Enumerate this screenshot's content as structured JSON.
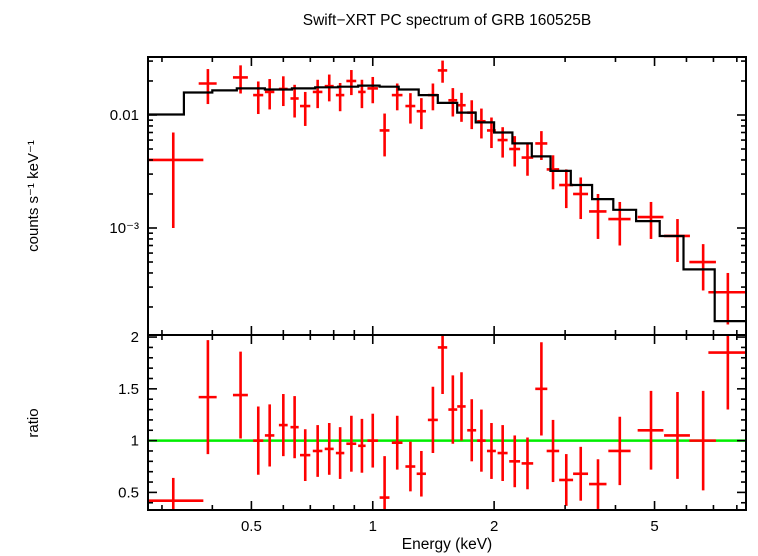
{
  "window": {
    "background": "#ffffff"
  },
  "chart_data": {
    "type": "scatter",
    "title": "Swift−XRT PC spectrum of GRB 160525B",
    "xlabel": "Energy (keV)",
    "x_scale": "log",
    "x_range": [
      0.277,
      8.43
    ],
    "x_major_ticks": [
      0.5,
      1,
      2,
      5
    ],
    "x_major_tick_labels": [
      "0.5",
      "1",
      "2",
      "5"
    ],
    "x_minor_ticks": [
      0.3,
      0.4,
      0.6,
      0.7,
      0.8,
      0.9,
      3,
      4,
      6,
      7,
      8
    ],
    "grid": "off",
    "legend": "none",
    "colors": {
      "data": "#ff0000",
      "model": "#000000",
      "reference_line": "#00ee00",
      "axis": "#000000"
    },
    "top_panel": {
      "ylabel": "counts s⁻¹ keV⁻¹",
      "y_scale": "log",
      "y_range": [
        0.000113,
        0.0326
      ],
      "y_major_ticks": [
        0.01,
        0.001
      ],
      "y_major_tick_labels": [
        "0.01",
        "10⁻³"
      ],
      "model_bins": [
        [
          0.277,
          0.34,
          0.0101
        ],
        [
          0.34,
          0.4,
          0.0158
        ],
        [
          0.4,
          0.46,
          0.0165
        ],
        [
          0.46,
          0.54,
          0.0172
        ],
        [
          0.54,
          0.63,
          0.0168
        ],
        [
          0.63,
          0.72,
          0.0172
        ],
        [
          0.72,
          0.82,
          0.0176
        ],
        [
          0.82,
          0.92,
          0.0178
        ],
        [
          0.92,
          1.04,
          0.0182
        ],
        [
          1.04,
          1.16,
          0.0178
        ],
        [
          1.16,
          1.3,
          0.0168
        ],
        [
          1.3,
          1.45,
          0.015
        ],
        [
          1.45,
          1.62,
          0.0128
        ],
        [
          1.62,
          1.8,
          0.0105
        ],
        [
          1.8,
          2.0,
          0.0086
        ],
        [
          2.0,
          2.22,
          0.007
        ],
        [
          2.22,
          2.48,
          0.0056
        ],
        [
          2.48,
          2.76,
          0.0043
        ],
        [
          2.76,
          3.1,
          0.0032
        ],
        [
          3.1,
          3.5,
          0.0024
        ],
        [
          3.5,
          3.95,
          0.0018
        ],
        [
          3.95,
          4.5,
          0.00145
        ],
        [
          4.5,
          5.15,
          0.00115
        ],
        [
          5.15,
          5.9,
          0.00085
        ],
        [
          5.9,
          7.05,
          0.00043
        ],
        [
          7.05,
          8.43,
          0.00015
        ]
      ]
    },
    "bottom_panel": {
      "ylabel": "ratio",
      "y_scale": "linear",
      "y_range": [
        0.33,
        2.02
      ],
      "y_major_ticks": [
        0.5,
        1,
        1.5,
        2
      ],
      "y_major_tick_labels": [
        "0.5",
        "1",
        "1.5",
        "2"
      ],
      "y_minor_tick_step": 0.1,
      "reference_line_value": 1
    },
    "points_format": [
      "energy_keV",
      "energy_err_minus",
      "energy_err_plus",
      "counts_s_keV",
      "counts_err",
      "ratio",
      "ratio_err"
    ],
    "points": [
      [
        0.32,
        0.045,
        0.06,
        0.004,
        0.003,
        0.42,
        0.22
      ],
      [
        0.39,
        0.02,
        0.02,
        0.019,
        0.0065,
        1.42,
        0.55
      ],
      [
        0.47,
        0.02,
        0.02,
        0.0215,
        0.006,
        1.44,
        0.42
      ],
      [
        0.52,
        0.015,
        0.015,
        0.015,
        0.0048,
        1.0,
        0.33
      ],
      [
        0.555,
        0.015,
        0.015,
        0.016,
        0.0048,
        1.05,
        0.3
      ],
      [
        0.6,
        0.015,
        0.015,
        0.017,
        0.005,
        1.15,
        0.3
      ],
      [
        0.64,
        0.015,
        0.015,
        0.014,
        0.0045,
        1.13,
        0.3
      ],
      [
        0.68,
        0.02,
        0.02,
        0.012,
        0.004,
        0.86,
        0.25
      ],
      [
        0.73,
        0.02,
        0.02,
        0.016,
        0.0045,
        0.9,
        0.25
      ],
      [
        0.78,
        0.02,
        0.02,
        0.018,
        0.0048,
        0.92,
        0.25
      ],
      [
        0.83,
        0.02,
        0.02,
        0.015,
        0.0042,
        0.88,
        0.25
      ],
      [
        0.885,
        0.025,
        0.025,
        0.02,
        0.005,
        0.97,
        0.27
      ],
      [
        0.94,
        0.02,
        0.02,
        0.016,
        0.0045,
        0.95,
        0.26
      ],
      [
        1.0,
        0.03,
        0.03,
        0.0172,
        0.0045,
        1.0,
        0.26
      ],
      [
        1.07,
        0.03,
        0.03,
        0.0073,
        0.003,
        0.45,
        0.4
      ],
      [
        1.15,
        0.035,
        0.035,
        0.015,
        0.004,
        0.98,
        0.26
      ],
      [
        1.24,
        0.035,
        0.035,
        0.012,
        0.0036,
        0.75,
        0.24
      ],
      [
        1.32,
        0.035,
        0.035,
        0.0108,
        0.0033,
        0.68,
        0.22
      ],
      [
        1.41,
        0.04,
        0.04,
        0.015,
        0.004,
        1.2,
        0.32
      ],
      [
        1.49,
        0.04,
        0.04,
        0.0248,
        0.0055,
        1.9,
        0.45
      ],
      [
        1.58,
        0.04,
        0.04,
        0.0135,
        0.0038,
        1.3,
        0.33
      ],
      [
        1.66,
        0.04,
        0.04,
        0.0122,
        0.0035,
        1.33,
        0.33
      ],
      [
        1.76,
        0.045,
        0.045,
        0.0105,
        0.003,
        1.1,
        0.3
      ],
      [
        1.86,
        0.045,
        0.045,
        0.0088,
        0.0026,
        1.0,
        0.3
      ],
      [
        1.97,
        0.05,
        0.05,
        0.0073,
        0.0022,
        0.9,
        0.27
      ],
      [
        2.1,
        0.06,
        0.06,
        0.006,
        0.0018,
        0.88,
        0.27
      ],
      [
        2.25,
        0.07,
        0.07,
        0.005,
        0.0015,
        0.8,
        0.25
      ],
      [
        2.42,
        0.08,
        0.08,
        0.0042,
        0.0013,
        0.78,
        0.25
      ],
      [
        2.62,
        0.09,
        0.09,
        0.0056,
        0.0016,
        1.5,
        0.45
      ],
      [
        2.8,
        0.1,
        0.1,
        0.0033,
        0.0011,
        0.9,
        0.3
      ],
      [
        3.02,
        0.12,
        0.12,
        0.0024,
        0.0009,
        0.62,
        0.25
      ],
      [
        3.28,
        0.14,
        0.14,
        0.002,
        0.0008,
        0.68,
        0.26
      ],
      [
        3.62,
        0.18,
        0.18,
        0.0014,
        0.0006,
        0.58,
        0.24
      ],
      [
        4.1,
        0.26,
        0.26,
        0.0012,
        0.0005,
        0.9,
        0.33
      ],
      [
        4.9,
        0.36,
        0.36,
        0.00125,
        0.00045,
        1.1,
        0.38
      ],
      [
        5.7,
        0.42,
        0.42,
        0.00085,
        0.00035,
        1.05,
        0.42
      ],
      [
        6.6,
        0.5,
        0.5,
        0.0005,
        0.00022,
        1.0,
        0.48
      ],
      [
        7.6,
        0.8,
        0.83,
        0.00027,
        0.00013,
        1.85,
        0.55
      ]
    ]
  }
}
